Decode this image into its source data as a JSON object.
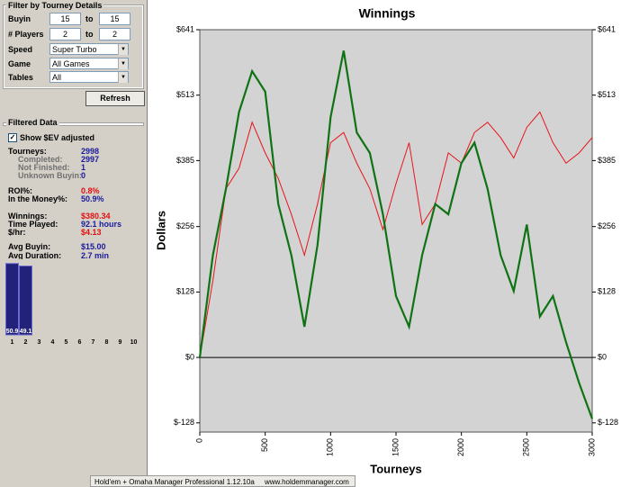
{
  "filter_panel": {
    "title": "Filter by Tourney Details",
    "ranges": [
      {
        "label": "Buyin",
        "from": "15",
        "sep": "to",
        "to": "15"
      },
      {
        "label": "# Players",
        "from": "2",
        "sep": "to",
        "to": "2"
      }
    ],
    "selects": [
      {
        "label": "Speed",
        "value": "Super Turbo"
      },
      {
        "label": "Game",
        "value": "All Games"
      },
      {
        "label": "Tables",
        "value": "All"
      }
    ],
    "button": "Refresh"
  },
  "filtered_data": {
    "title": "Filtered Data",
    "checkbox": "Show $EV adjusted",
    "stats": [
      {
        "label": "Tourneys:",
        "value": "2998",
        "color": "#1a1a9c"
      },
      {
        "label": "Completed:",
        "value": "2997",
        "color": "#1a1a9c",
        "sub": true
      },
      {
        "label": "Not Finished:",
        "value": "1",
        "color": "#1a1a9c",
        "sub": true
      },
      {
        "label": "Unknown Buyin:",
        "value": "0",
        "color": "#1a1a9c",
        "sub": true
      },
      {
        "label": "ROI%:",
        "value": "0.8%",
        "color": "#e01010"
      },
      {
        "label": "In the Money%:",
        "value": "50.9%",
        "color": "#1a1a9c"
      },
      {
        "label": "Winnings:",
        "value": "$380.34",
        "color": "#e01010"
      },
      {
        "label": "Time Played:",
        "value": "92.1 hours",
        "color": "#1a1a9c"
      },
      {
        "label": "$/hr:",
        "value": "$4.13",
        "color": "#e01010"
      },
      {
        "label": "Avg Buyin:",
        "value": "$15.00",
        "color": "#1a1a9c"
      },
      {
        "label": "Avg Duration:",
        "value": "2.7 min",
        "color": "#1a1a9c"
      }
    ]
  },
  "chart_data": [
    {
      "type": "line",
      "title": "Winnings",
      "x_label": "Tourneys",
      "y_label": "Dollars",
      "x": [
        0,
        100,
        200,
        300,
        400,
        500,
        600,
        700,
        800,
        900,
        1000,
        1100,
        1200,
        1300,
        1400,
        1500,
        1600,
        1700,
        1800,
        1900,
        2000,
        2100,
        2200,
        2300,
        2400,
        2500,
        2600,
        2700,
        2800,
        2900,
        3000
      ],
      "series": [
        {
          "color": "#e8141a",
          "values": [
            0,
            150,
            330,
            370,
            460,
            400,
            350,
            280,
            200,
            300,
            420,
            440,
            380,
            330,
            250,
            340,
            420,
            260,
            300,
            400,
            380,
            440,
            460,
            430,
            390,
            450,
            480,
            420,
            380,
            400,
            430
          ]
        },
        {
          "color": "#0f7314",
          "values": [
            0,
            200,
            330,
            480,
            560,
            520,
            300,
            200,
            60,
            220,
            470,
            600,
            440,
            400,
            280,
            120,
            60,
            200,
            300,
            280,
            380,
            420,
            330,
            200,
            130,
            260,
            80,
            120,
            30,
            -50,
            -120
          ]
        }
      ],
      "xlim": [
        0,
        3000
      ],
      "xticks": [
        0,
        500,
        1000,
        1500,
        2000,
        2500,
        3000
      ],
      "ylim": [
        -146,
        641
      ],
      "yticks": [
        {
          "value": -128,
          "label": "$-128"
        },
        {
          "value": 0,
          "label": "$0"
        },
        {
          "value": 128,
          "label": "$128"
        },
        {
          "value": 256,
          "label": "$256"
        },
        {
          "value": 385,
          "label": "$385"
        },
        {
          "value": 513,
          "label": "$513"
        },
        {
          "value": 641,
          "label": "$641"
        }
      ]
    },
    {
      "type": "bar",
      "categories": [
        "1",
        "2",
        "3",
        "4",
        "5",
        "6",
        "7",
        "8",
        "9",
        "10"
      ],
      "values": [
        50.9,
        49.1,
        null,
        null,
        null,
        null,
        null,
        null,
        null,
        null
      ],
      "color": "#22227a",
      "ylim": [
        0,
        52
      ]
    }
  ],
  "status_bar": {
    "app": "Hold'em + Omaha Manager Professional 1.12.10a",
    "url": "www.holdemmanager.com"
  }
}
